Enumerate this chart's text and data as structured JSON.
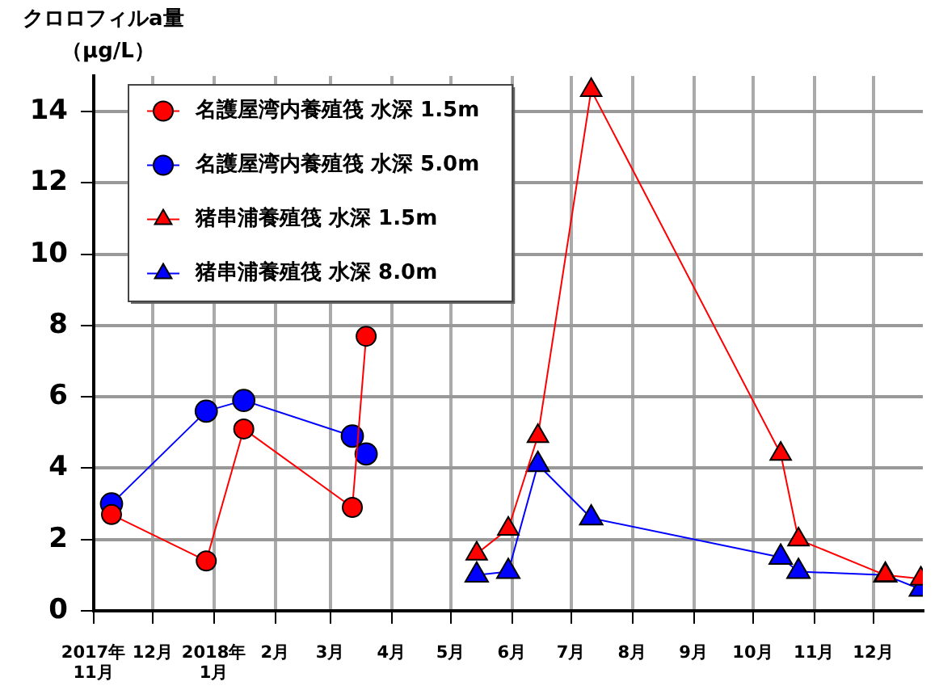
{
  "chart_data": {
    "type": "line",
    "ylabel": "クロロフィルa量（μg/L）",
    "xlim": [
      "2017-11-01",
      "2018-12-26"
    ],
    "xticks": [
      {
        "value": "2017-11-01",
        "label": "2017年\n11月"
      },
      {
        "value": "2017-12-01",
        "label": "12月"
      },
      {
        "value": "2018-01-01",
        "label": "2018年\n1月"
      },
      {
        "value": "2018-02-01",
        "label": "2月"
      },
      {
        "value": "2018-03-01",
        "label": "3月"
      },
      {
        "value": "2018-04-01",
        "label": "4月"
      },
      {
        "value": "2018-05-01",
        "label": "5月"
      },
      {
        "value": "2018-06-01",
        "label": "6月"
      },
      {
        "value": "2018-07-01",
        "label": "7月"
      },
      {
        "value": "2018-08-01",
        "label": "8月"
      },
      {
        "value": "2018-09-01",
        "label": "9月"
      },
      {
        "value": "2018-10-01",
        "label": "10月"
      },
      {
        "value": "2018-11-01",
        "label": "11月"
      },
      {
        "value": "2018-12-01",
        "label": "12月"
      }
    ],
    "ylim": [
      0,
      15
    ],
    "yticks": [
      0,
      2,
      4,
      6,
      8,
      10,
      12,
      14
    ],
    "grid": true,
    "legend": "top left",
    "series": [
      {
        "name": "名護屋湾内養殖筏 水深 1.5m",
        "color": "#ff0000",
        "marker": "circle",
        "x": [
          "2017-11-10",
          "2017-12-28",
          "2018-01-16",
          "2018-03-12",
          "2018-03-19"
        ],
        "values": [
          2.7,
          1.4,
          5.1,
          2.9,
          7.7
        ]
      },
      {
        "name": "名護屋湾内養殖筏 水深 5.0m",
        "color": "#0000ff",
        "marker": "circle",
        "x": [
          "2017-11-10",
          "2017-12-28",
          "2018-01-16",
          "2018-03-12",
          "2018-03-19"
        ],
        "values": [
          3.0,
          5.6,
          5.9,
          4.9,
          4.4
        ]
      },
      {
        "name": "猪串浦養殖筏 水深 1.5m",
        "color": "#ff0000",
        "marker": "triangle",
        "x": [
          "2018-05-14",
          "2018-05-30",
          "2018-06-14",
          "2018-07-11",
          "2018-10-15",
          "2018-10-24",
          "2018-12-07",
          "2018-12-25"
        ],
        "values": [
          1.6,
          2.3,
          4.9,
          14.6,
          4.4,
          2.0,
          1.0,
          0.9
        ]
      },
      {
        "name": "猪串浦養殖筏 水深 8.0m",
        "color": "#0000ff",
        "marker": "triangle",
        "x": [
          "2018-05-14",
          "2018-05-30",
          "2018-06-14",
          "2018-07-11",
          "2018-10-15",
          "2018-10-24",
          "2018-12-07",
          "2018-12-25"
        ],
        "values": [
          1.0,
          1.1,
          4.1,
          2.6,
          1.5,
          1.1,
          1.0,
          0.6
        ]
      }
    ]
  }
}
